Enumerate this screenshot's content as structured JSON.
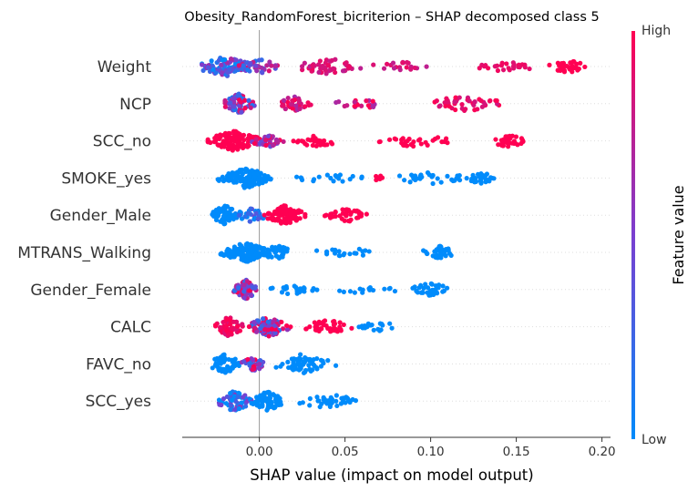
{
  "chart_data": {
    "type": "scatter",
    "subtype": "shap-beeswarm",
    "title": "Obesity_RandomForest_bicriterion – SHAP decomposed class 5",
    "xlabel": "SHAP value (impact on model output)",
    "xlim": [
      -0.045,
      0.205
    ],
    "xticks": [
      0.0,
      0.05,
      0.1,
      0.15,
      0.2
    ],
    "xtick_labels": [
      "0.00",
      "0.05",
      "0.10",
      "0.15",
      "0.20"
    ],
    "colorbar": {
      "title": "Feature value",
      "high_label": "High",
      "low_label": "Low",
      "low_color": "#008bfb",
      "high_color": "#ff0052"
    },
    "features": [
      {
        "name": "Weight",
        "range": [
          -0.035,
          0.19
        ],
        "dense": [
          {
            "center": -0.02,
            "width": 0.035,
            "count": 90,
            "value": 0.3,
            "spread": 0.4
          },
          {
            "center": 0.0,
            "width": 0.03,
            "count": 40,
            "value": 0.5,
            "spread": 0.4
          },
          {
            "center": 0.04,
            "width": 0.04,
            "count": 50,
            "value": 0.85,
            "spread": 0.1
          },
          {
            "center": 0.085,
            "width": 0.04,
            "count": 20,
            "value": 0.85,
            "spread": 0.1
          },
          {
            "center": 0.145,
            "width": 0.035,
            "count": 25,
            "value": 0.92,
            "spread": 0.05
          },
          {
            "center": 0.18,
            "width": 0.025,
            "count": 35,
            "value": 1.0,
            "spread": 0.0
          }
        ]
      },
      {
        "name": "NCP",
        "range": [
          -0.02,
          0.15
        ],
        "dense": [
          {
            "center": -0.012,
            "width": 0.02,
            "count": 80,
            "value": 0.55,
            "spread": 0.5
          },
          {
            "center": 0.02,
            "width": 0.025,
            "count": 40,
            "value": 0.85,
            "spread": 0.2
          },
          {
            "center": 0.06,
            "width": 0.04,
            "count": 20,
            "value": 0.85,
            "spread": 0.2
          },
          {
            "center": 0.12,
            "width": 0.05,
            "count": 45,
            "value": 0.92,
            "spread": 0.1
          }
        ]
      },
      {
        "name": "SCC_no",
        "range": [
          -0.03,
          0.155
        ],
        "dense": [
          {
            "center": -0.015,
            "width": 0.035,
            "count": 110,
            "value": 1.0,
            "spread": 0.0
          },
          {
            "center": 0.005,
            "width": 0.02,
            "count": 35,
            "value": 0.7,
            "spread": 0.3
          },
          {
            "center": 0.03,
            "width": 0.04,
            "count": 30,
            "value": 1.0,
            "spread": 0.0
          },
          {
            "center": 0.09,
            "width": 0.05,
            "count": 30,
            "value": 1.0,
            "spread": 0.0
          },
          {
            "center": 0.145,
            "width": 0.02,
            "count": 35,
            "value": 1.0,
            "spread": 0.0
          }
        ]
      },
      {
        "name": "SMOKE_yes",
        "range": [
          -0.032,
          0.142
        ],
        "dense": [
          {
            "center": -0.008,
            "width": 0.035,
            "count": 130,
            "value": 0.0,
            "spread": 0.0
          },
          {
            "center": 0.04,
            "width": 0.05,
            "count": 20,
            "value": 0.0,
            "spread": 0.0
          },
          {
            "center": 0.07,
            "width": 0.008,
            "count": 8,
            "value": 1.0,
            "spread": 0.0
          },
          {
            "center": 0.1,
            "width": 0.05,
            "count": 30,
            "value": 0.0,
            "spread": 0.0
          },
          {
            "center": 0.13,
            "width": 0.02,
            "count": 30,
            "value": 0.0,
            "spread": 0.0
          }
        ]
      },
      {
        "name": "Gender_Male",
        "range": [
          -0.032,
          0.07
        ],
        "dense": [
          {
            "center": -0.02,
            "width": 0.02,
            "count": 60,
            "value": 0.0,
            "spread": 0.0
          },
          {
            "center": -0.005,
            "width": 0.02,
            "count": 35,
            "value": 0.15,
            "spread": 0.3
          },
          {
            "center": 0.015,
            "width": 0.025,
            "count": 90,
            "value": 1.0,
            "spread": 0.0
          },
          {
            "center": 0.05,
            "width": 0.03,
            "count": 40,
            "value": 1.0,
            "spread": 0.0
          }
        ]
      },
      {
        "name": "MTRANS_Walking",
        "range": [
          -0.028,
          0.112
        ],
        "dense": [
          {
            "center": -0.008,
            "width": 0.03,
            "count": 120,
            "value": 0.0,
            "spread": 0.0
          },
          {
            "center": 0.01,
            "width": 0.02,
            "count": 40,
            "value": 0.0,
            "spread": 0.0
          },
          {
            "center": 0.05,
            "width": 0.04,
            "count": 20,
            "value": 0.0,
            "spread": 0.0
          },
          {
            "center": 0.105,
            "width": 0.02,
            "count": 35,
            "value": 0.0,
            "spread": 0.0
          }
        ]
      },
      {
        "name": "Gender_Female",
        "range": [
          -0.022,
          0.112
        ],
        "dense": [
          {
            "center": -0.008,
            "width": 0.015,
            "count": 80,
            "value": 0.6,
            "spread": 0.5
          },
          {
            "center": 0.02,
            "width": 0.03,
            "count": 25,
            "value": 0.0,
            "spread": 0.0
          },
          {
            "center": 0.06,
            "width": 0.04,
            "count": 15,
            "value": 0.0,
            "spread": 0.0
          },
          {
            "center": 0.1,
            "width": 0.025,
            "count": 35,
            "value": 0.0,
            "spread": 0.0
          }
        ]
      },
      {
        "name": "CALC",
        "range": [
          -0.028,
          0.085
        ],
        "dense": [
          {
            "center": -0.018,
            "width": 0.02,
            "count": 60,
            "value": 0.95,
            "spread": 0.1
          },
          {
            "center": 0.005,
            "width": 0.03,
            "count": 90,
            "value": 0.7,
            "spread": 0.6
          },
          {
            "center": 0.04,
            "width": 0.03,
            "count": 40,
            "value": 1.0,
            "spread": 0.0
          },
          {
            "center": 0.07,
            "width": 0.03,
            "count": 20,
            "value": 0.0,
            "spread": 0.0
          }
        ]
      },
      {
        "name": "FAVC_no",
        "range": [
          -0.032,
          0.05
        ],
        "dense": [
          {
            "center": -0.02,
            "width": 0.02,
            "count": 60,
            "value": 0.0,
            "spread": 0.0
          },
          {
            "center": -0.003,
            "width": 0.015,
            "count": 40,
            "value": 0.6,
            "spread": 0.5
          },
          {
            "center": 0.025,
            "width": 0.04,
            "count": 60,
            "value": 0.0,
            "spread": 0.0
          }
        ]
      },
      {
        "name": "SCC_yes",
        "range": [
          -0.028,
          0.068
        ],
        "dense": [
          {
            "center": -0.015,
            "width": 0.025,
            "count": 60,
            "value": 0.15,
            "spread": 0.5
          },
          {
            "center": 0.005,
            "width": 0.02,
            "count": 80,
            "value": 0.0,
            "spread": 0.0
          },
          {
            "center": 0.04,
            "width": 0.04,
            "count": 40,
            "value": 0.0,
            "spread": 0.0
          }
        ]
      }
    ]
  }
}
